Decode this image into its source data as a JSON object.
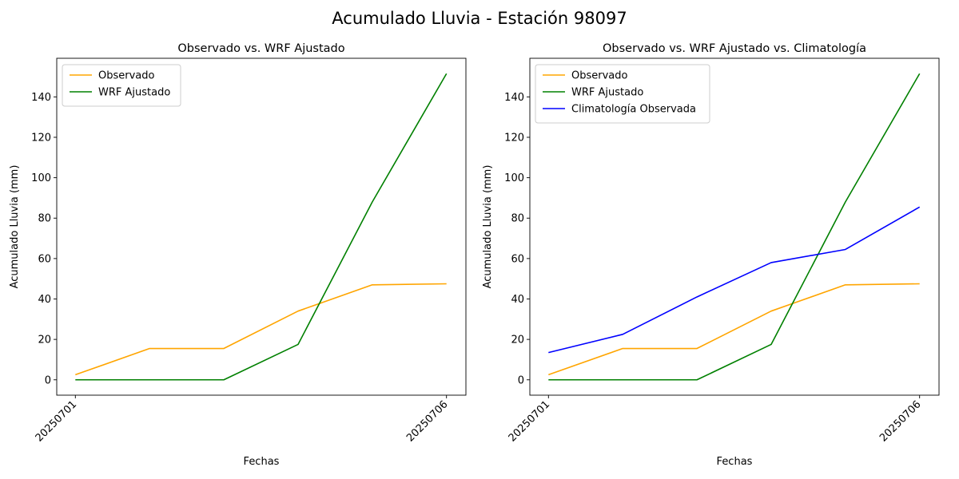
{
  "figure_title": "Acumulado Lluvia - Estación 98097",
  "chart_data": [
    {
      "type": "line",
      "title": "Observado vs. WRF Ajustado",
      "xlabel": "Fechas",
      "ylabel": "Acumulado Lluvia (mm)",
      "x": [
        "20250701",
        "20250702",
        "20250703",
        "20250704",
        "20250705",
        "20250706"
      ],
      "xtick_labels": [
        "20250701",
        "20250706"
      ],
      "yticks": [
        0,
        20,
        40,
        60,
        80,
        100,
        120,
        140
      ],
      "ylim": [
        -7.6,
        159.1
      ],
      "grid": false,
      "legend_position": "upper-left",
      "series": [
        {
          "name": "Observado",
          "color": "#ffa500",
          "values": [
            2.5,
            15.5,
            15.5,
            34,
            47,
            47.5
          ]
        },
        {
          "name": "WRF Ajustado",
          "color": "#008000",
          "values": [
            0,
            0,
            0,
            17.5,
            88,
            151.5
          ]
        }
      ]
    },
    {
      "type": "line",
      "title": "Observado vs. WRF Ajustado vs. Climatología",
      "xlabel": "Fechas",
      "ylabel": "Acumulado Lluvia (mm)",
      "x": [
        "20250701",
        "20250702",
        "20250703",
        "20250704",
        "20250705",
        "20250706"
      ],
      "xtick_labels": [
        "20250701",
        "20250706"
      ],
      "yticks": [
        0,
        20,
        40,
        60,
        80,
        100,
        120,
        140
      ],
      "ylim": [
        -7.6,
        159.1
      ],
      "grid": false,
      "legend_position": "upper-left",
      "series": [
        {
          "name": "Observado",
          "color": "#ffa500",
          "values": [
            2.5,
            15.5,
            15.5,
            34,
            47,
            47.5
          ]
        },
        {
          "name": "WRF Ajustado",
          "color": "#008000",
          "values": [
            0,
            0,
            0,
            17.5,
            88,
            151.5
          ]
        },
        {
          "name": "Climatología Observada",
          "color": "#0000ff",
          "values": [
            13.5,
            22.5,
            41,
            58,
            64.5,
            85.5
          ]
        }
      ]
    }
  ]
}
